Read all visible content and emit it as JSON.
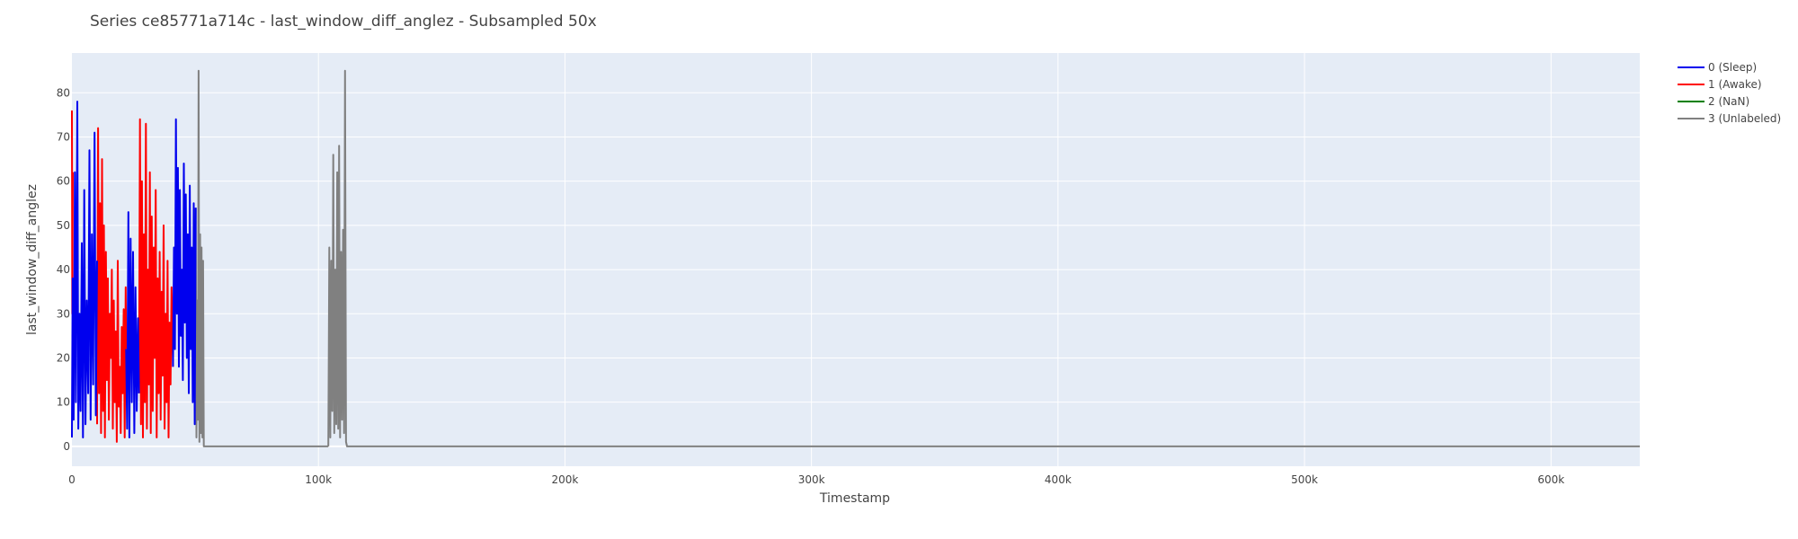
{
  "chart_data": {
    "type": "line",
    "title": "Series ce85771a714c - last_window_diff_anglez - Subsampled 50x",
    "xlabel": "Timestamp",
    "ylabel": "last_window_diff_anglez",
    "xlim": [
      0,
      636000
    ],
    "ylim": [
      -4.5,
      89
    ],
    "x_ticks": [
      0,
      100000,
      200000,
      300000,
      400000,
      500000,
      600000
    ],
    "x_tick_labels": [
      "0",
      "100k",
      "200k",
      "300k",
      "400k",
      "500k",
      "600k"
    ],
    "y_ticks": [
      0,
      10,
      20,
      30,
      40,
      50,
      60,
      70,
      80
    ],
    "y_tick_labels": [
      "0",
      "10",
      "20",
      "30",
      "40",
      "50",
      "60",
      "70",
      "80"
    ],
    "grid": true,
    "legend_position": "top-right",
    "series": [
      {
        "name": "0 (Sleep)",
        "color": "#0000ee",
        "segments": [
          {
            "x": [
              0,
              300,
              700,
              1200,
              1600,
              2200,
              2600,
              3100,
              3500,
              4000,
              4500,
              5000,
              5500,
              6000,
              6600,
              7100,
              7600,
              8100,
              8600,
              9200,
              9700,
              10200
            ],
            "y": [
              2,
              38,
              6,
              62,
              10,
              78,
              4,
              30,
              8,
              46,
              2,
              58,
              5,
              33,
              12,
              67,
              6,
              48,
              14,
              71,
              7,
              42
            ]
          },
          {
            "x": [
              22000,
              22400,
              22900,
              23300,
              23800,
              24300,
              24800,
              25300,
              25800,
              26300,
              26800,
              27200
            ],
            "y": [
              22,
              4,
              53,
              2,
              47,
              10,
              44,
              3,
              36,
              8,
              29,
              12
            ]
          },
          {
            "x": [
              41000,
              41400,
              41800,
              42200,
              42600,
              43000,
              43400,
              43800,
              44200,
              44600,
              45000,
              45400,
              45800,
              46200,
              46600,
              47000,
              47400,
              47800,
              48200,
              48600,
              49000,
              49400,
              49800,
              50200
            ],
            "y": [
              18,
              45,
              22,
              74,
              30,
              63,
              18,
              58,
              25,
              40,
              15,
              64,
              28,
              57,
              20,
              48,
              12,
              59,
              22,
              45,
              10,
              55,
              5,
              54
            ]
          }
        ]
      },
      {
        "name": "1 (Awake)",
        "color": "#ff0000",
        "segments": [
          {
            "x": [
              0,
              150,
              350
            ],
            "y": [
              76,
              30,
              62
            ]
          },
          {
            "x": [
              10200,
              10600,
              11000,
              11400,
              11800,
              12200,
              12600,
              13000,
              13400,
              13800,
              14200,
              14600,
              15000,
              15400,
              15800,
              16200,
              16600,
              17000,
              17400,
              17800,
              18200,
              18600,
              19000,
              19400,
              19800,
              20200,
              20600,
              21000,
              21400,
              21800,
              22000
            ],
            "y": [
              5,
              72,
              12,
              55,
              3,
              65,
              8,
              50,
              2,
              44,
              15,
              38,
              6,
              30,
              20,
              40,
              4,
              33,
              10,
              26,
              1,
              42,
              9,
              18,
              3,
              27,
              12,
              31,
              2,
              36,
              22
            ]
          },
          {
            "x": [
              27200,
              27600,
              28000,
              28400,
              28800,
              29200,
              29600,
              30000,
              30400,
              30800,
              31200,
              31600,
              32000,
              32400,
              32800,
              33200,
              33600,
              34000,
              34400,
              34800,
              35200,
              35600,
              36000,
              36400,
              36800,
              37200,
              37600,
              38000,
              38400,
              38800,
              39200,
              39600,
              40000,
              40400,
              41000
            ],
            "y": [
              12,
              74,
              5,
              60,
              2,
              48,
              10,
              73,
              4,
              40,
              14,
              62,
              3,
              52,
              8,
              45,
              20,
              58,
              2,
              38,
              12,
              44,
              6,
              35,
              16,
              50,
              4,
              30,
              10,
              42,
              2,
              28,
              14,
              36,
              18
            ]
          }
        ]
      },
      {
        "name": "2 (NaN)",
        "color": "#008000",
        "segments": []
      },
      {
        "name": "3 (Unlabeled)",
        "color": "#808080",
        "segments": [
          {
            "x": [
              50200,
              50500,
              50800,
              51100,
              51400,
              51700,
              52000,
              52300,
              52600,
              52900,
              53200,
              53500,
              54000,
              60000,
              70000,
              80000,
              90000,
              100000,
              104000
            ],
            "y": [
              54,
              2,
              33,
              6,
              85,
              1,
              48,
              3,
              45,
              2,
              42,
              0,
              0,
              0,
              0,
              0,
              0,
              0,
              0
            ]
          },
          {
            "x": [
              104000,
              104400,
              104800,
              105200,
              105600,
              106000,
              106400,
              106800,
              107200,
              107600,
              108000,
              108400,
              108800,
              109200,
              109600,
              110000,
              110400,
              110800,
              111200,
              111600,
              112000,
              200000,
              300000,
              400000,
              500000,
              600000,
              636000
            ],
            "y": [
              0,
              45,
              2,
              42,
              8,
              66,
              3,
              40,
              5,
              62,
              4,
              68,
              2,
              44,
              6,
              49,
              3,
              85,
              1,
              0,
              0,
              0,
              0,
              0,
              0,
              0,
              0
            ]
          }
        ]
      }
    ]
  }
}
